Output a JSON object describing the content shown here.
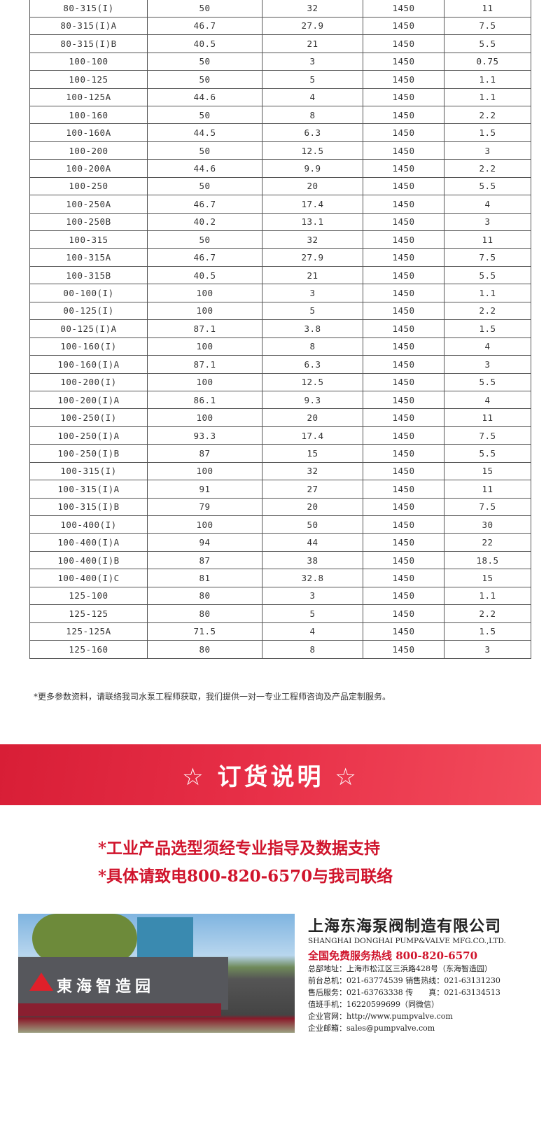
{
  "table": {
    "rows": [
      [
        "80-315(I)",
        "50",
        "32",
        "1450",
        "11"
      ],
      [
        "80-315(I)A",
        "46.7",
        "27.9",
        "1450",
        "7.5"
      ],
      [
        "80-315(I)B",
        "40.5",
        "21",
        "1450",
        "5.5"
      ],
      [
        "100-100",
        "50",
        "3",
        "1450",
        "0.75"
      ],
      [
        "100-125",
        "50",
        "5",
        "1450",
        "1.1"
      ],
      [
        "100-125A",
        "44.6",
        "4",
        "1450",
        "1.1"
      ],
      [
        "100-160",
        "50",
        "8",
        "1450",
        "2.2"
      ],
      [
        "100-160A",
        "44.5",
        "6.3",
        "1450",
        "1.5"
      ],
      [
        "100-200",
        "50",
        "12.5",
        "1450",
        "3"
      ],
      [
        "100-200A",
        "44.6",
        "9.9",
        "1450",
        "2.2"
      ],
      [
        "100-250",
        "50",
        "20",
        "1450",
        "5.5"
      ],
      [
        "100-250A",
        "46.7",
        "17.4",
        "1450",
        "4"
      ],
      [
        "100-250B",
        "40.2",
        "13.1",
        "1450",
        "3"
      ],
      [
        "100-315",
        "50",
        "32",
        "1450",
        "11"
      ],
      [
        "100-315A",
        "46.7",
        "27.9",
        "1450",
        "7.5"
      ],
      [
        "100-315B",
        "40.5",
        "21",
        "1450",
        "5.5"
      ],
      [
        "00-100(I)",
        "100",
        "3",
        "1450",
        "1.1"
      ],
      [
        "00-125(I)",
        "100",
        "5",
        "1450",
        "2.2"
      ],
      [
        "00-125(I)A",
        "87.1",
        "3.8",
        "1450",
        "1.5"
      ],
      [
        "100-160(I)",
        "100",
        "8",
        "1450",
        "4"
      ],
      [
        "100-160(I)A",
        "87.1",
        "6.3",
        "1450",
        "3"
      ],
      [
        "100-200(I)",
        "100",
        "12.5",
        "1450",
        "5.5"
      ],
      [
        "100-200(I)A",
        "86.1",
        "9.3",
        "1450",
        "4"
      ],
      [
        "100-250(I)",
        "100",
        "20",
        "1450",
        "11"
      ],
      [
        "100-250(I)A",
        "93.3",
        "17.4",
        "1450",
        "7.5"
      ],
      [
        "100-250(I)B",
        "87",
        "15",
        "1450",
        "5.5"
      ],
      [
        "100-315(I)",
        "100",
        "32",
        "1450",
        "15"
      ],
      [
        "100-315(I)A",
        "91",
        "27",
        "1450",
        "11"
      ],
      [
        "100-315(I)B",
        "79",
        "20",
        "1450",
        "7.5"
      ],
      [
        "100-400(I)",
        "100",
        "50",
        "1450",
        "30"
      ],
      [
        "100-400(I)A",
        "94",
        "44",
        "1450",
        "22"
      ],
      [
        "100-400(I)B",
        "87",
        "38",
        "1450",
        "18.5"
      ],
      [
        "100-400(I)C",
        "81",
        "32.8",
        "1450",
        "15"
      ],
      [
        "125-100",
        "80",
        "3",
        "1450",
        "1.1"
      ],
      [
        "125-125",
        "80",
        "5",
        "1450",
        "2.2"
      ],
      [
        "125-125A",
        "71.5",
        "4",
        "1450",
        "1.5"
      ],
      [
        "125-160",
        "80",
        "8",
        "1450",
        "3"
      ]
    ]
  },
  "note": "*更多参数资料，请联络我司水泵工程师获取，我们提供一对一专业工程师咨询及产品定制服务。",
  "banner": {
    "title": "☆ 订货说明 ☆",
    "color": "#e0283f"
  },
  "order_notes": [
    "*工业产品选型须经专业指导及数据支持",
    "*具体请致电800-820-6570与我司联络"
  ],
  "photo": {
    "sign": "東海智造园"
  },
  "company": {
    "name_cn": "上海东海泵阀制造有限公司",
    "name_en": "SHANGHAI DONGHAI PUMP&VALVE MFG.CO.,LTD.",
    "hotline": "全国免费服务热线  800-820-6570",
    "lines": [
      "总部地址：上海市松江区三浜路428号（东海智造园）",
      "前台总机：021-63774539   销售热线：021-63131230",
      "售后服务：021-63763338   传　　真：021-63134513",
      "值班手机：16220599699（同微信）",
      "企业官网：http://www.pumpvalve.com",
      "企业邮箱：sales@pumpvalve.com"
    ]
  }
}
